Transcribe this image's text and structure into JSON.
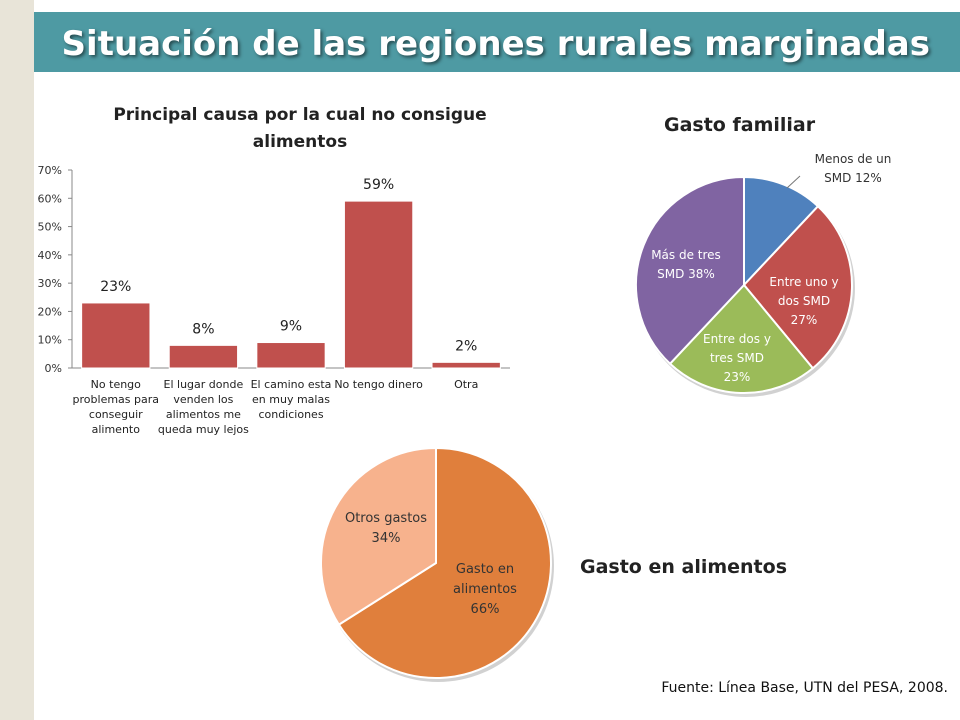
{
  "slide": {
    "title": "Situación de las regiones rurales marginadas",
    "source": "Fuente: Línea Base, UTN del PESA, 2008."
  },
  "colors": {
    "title_bar": "#4e9aa3",
    "left_strip": "#e8e4d8",
    "bar": "#c0504d"
  },
  "chart_data": [
    {
      "type": "bar",
      "title": "Principal causa por la cual no consigue alimentos",
      "categories": [
        "No tengo problemas para conseguir alimento",
        "El lugar donde venden los alimentos me queda muy lejos",
        "El camino esta en muy malas condiciones",
        "No tengo dinero",
        "Otra"
      ],
      "category_lines": [
        [
          "No tengo",
          "problemas para",
          "conseguir",
          "alimento"
        ],
        [
          "El lugar donde",
          "venden los",
          "alimentos me",
          "queda muy lejos"
        ],
        [
          "El camino esta",
          "en muy malas",
          "condiciones"
        ],
        [
          "No tengo dinero"
        ],
        [
          "Otra"
        ]
      ],
      "values": [
        23,
        8,
        9,
        59,
        2
      ],
      "data_labels": [
        "23%",
        "8%",
        "9%",
        "59%",
        "2%"
      ],
      "yticks": [
        "0%",
        "10%",
        "20%",
        "30%",
        "40%",
        "50%",
        "60%",
        "70%"
      ],
      "ylim": [
        0,
        70
      ],
      "xlabel": "",
      "ylabel": "",
      "grid": false,
      "legend": "none"
    },
    {
      "type": "pie",
      "title": "Gasto familiar",
      "slices": [
        {
          "name": "Menos de un SMD",
          "value": 12,
          "label_lines": [
            "Menos de un",
            "SMD 12%"
          ],
          "color": "#4f81bd"
        },
        {
          "name": "Entre uno y dos SMD",
          "value": 27,
          "label_lines": [
            "Entre uno y",
            "dos SMD",
            "27%"
          ],
          "color": "#c0504d"
        },
        {
          "name": "Entre dos y tres SMD",
          "value": 23,
          "label_lines": [
            "Entre dos y",
            "tres SMD",
            "23%"
          ],
          "color": "#9bbb59"
        },
        {
          "name": "Más de tres SMD",
          "value": 38,
          "label_lines": [
            "Más de tres",
            "SMD 38%"
          ],
          "color": "#8064a2"
        }
      ],
      "legend": "none"
    },
    {
      "type": "pie",
      "title": "Gasto en alimentos",
      "slices": [
        {
          "name": "Gasto en alimentos",
          "value": 66,
          "label_lines": [
            "Gasto en",
            "alimentos",
            "66%"
          ],
          "color": "#e07f3c"
        },
        {
          "name": "Otros gastos",
          "value": 34,
          "label_lines": [
            "Otros gastos",
            "34%"
          ],
          "color": "#f7b28d"
        }
      ],
      "legend": "none"
    }
  ]
}
